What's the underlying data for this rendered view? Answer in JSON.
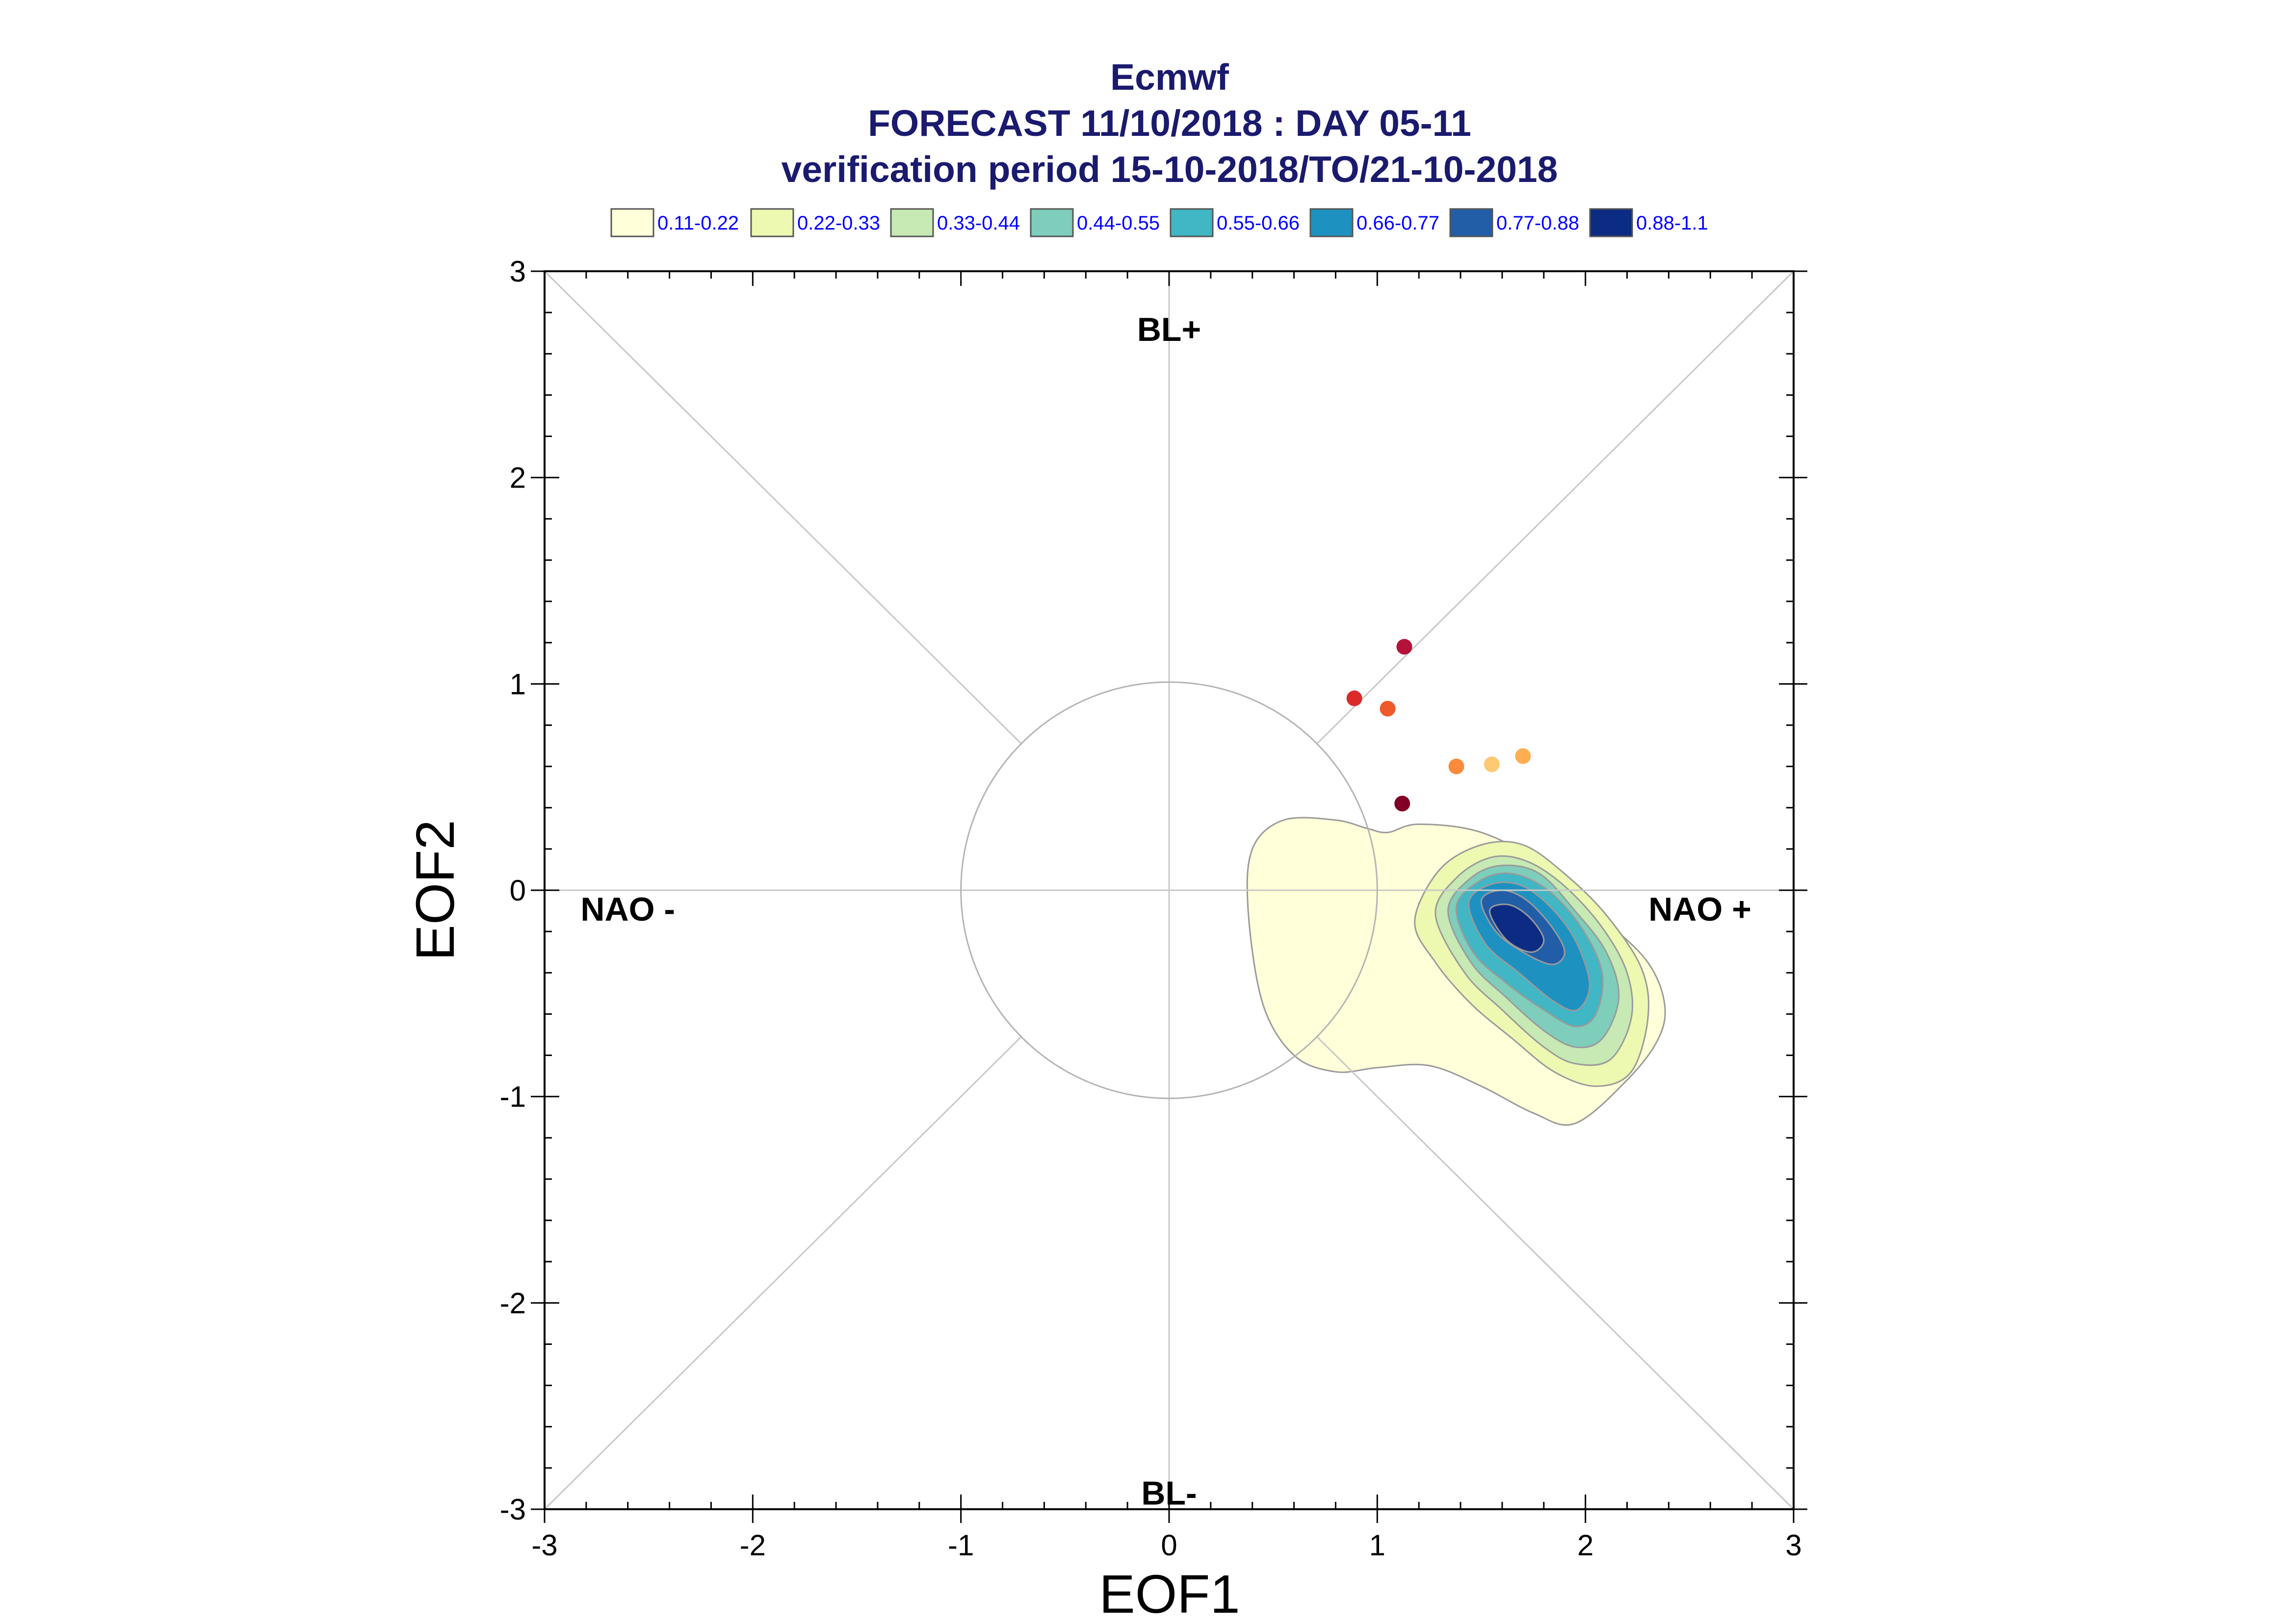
{
  "chart_data": {
    "type": "scatter",
    "title": "Ecmwf",
    "subtitle_1": "FORECAST 11/10/2018 : DAY 05-11",
    "subtitle_2": "verification period 15-10-2018/TO/21-10-2018",
    "xlabel": "EOF1",
    "ylabel": "EOF2",
    "xlim": [
      -3,
      3
    ],
    "ylim": [
      -3,
      3
    ],
    "xticks": [
      "-3",
      "-2",
      "-1",
      "0",
      "1",
      "2",
      "3"
    ],
    "yticks": [
      "-3",
      "-2",
      "-1",
      "0",
      "1",
      "2",
      "3"
    ],
    "grid": false,
    "legend_position": "top",
    "legend": [
      {
        "label": "0.11-0.22",
        "color": "#ffffd9"
      },
      {
        "label": "0.22-0.33",
        "color": "#edf8b1"
      },
      {
        "label": "0.33-0.44",
        "color": "#c7e9b4"
      },
      {
        "label": "0.44-0.55",
        "color": "#7fcdbb"
      },
      {
        "label": "0.55-0.66",
        "color": "#41b6c4"
      },
      {
        "label": "0.66-0.77",
        "color": "#1d91c0"
      },
      {
        "label": "0.77-0.88",
        "color": "#225ea8"
      },
      {
        "label": "0.88-1.1",
        "color": "#0c2c84"
      }
    ],
    "regions": [
      {
        "label": "BL+",
        "x": 0,
        "y": 2.72
      },
      {
        "label": "BL-",
        "x": 0,
        "y": -2.92
      },
      {
        "label": "NAO -",
        "x": -2.6,
        "y": -0.09
      },
      {
        "label": "NAO +",
        "x": 2.55,
        "y": -0.09
      }
    ],
    "reference_circle_radius": 1,
    "points": [
      {
        "x": 1.13,
        "y": 1.18,
        "color": "#b5123a"
      },
      {
        "x": 0.89,
        "y": 0.93,
        "color": "#dc2a2a"
      },
      {
        "x": 1.05,
        "y": 0.88,
        "color": "#f05a2a"
      },
      {
        "x": 1.38,
        "y": 0.6,
        "color": "#fb8a3c"
      },
      {
        "x": 1.55,
        "y": 0.61,
        "color": "#fdc974"
      },
      {
        "x": 1.7,
        "y": 0.65,
        "color": "#fdae52"
      },
      {
        "x": 1.12,
        "y": 0.42,
        "color": "#800026"
      }
    ],
    "density_contours": [
      {
        "level": "0.11-0.22",
        "color": "#ffffd9",
        "x": [
          0.4,
          0.55,
          0.8,
          0.95,
          1.05,
          1.2,
          1.5,
          1.8,
          2.1,
          2.3,
          2.38,
          2.35,
          2.2,
          1.95,
          1.75,
          1.5,
          1.25,
          1.0,
          0.8,
          0.6,
          0.45,
          0.38,
          0.4
        ],
        "y": [
          0.2,
          0.34,
          0.34,
          0.3,
          0.28,
          0.32,
          0.28,
          0.12,
          -0.15,
          -0.35,
          -0.55,
          -0.72,
          -0.92,
          -1.13,
          -1.08,
          -0.95,
          -0.85,
          -0.86,
          -0.88,
          -0.8,
          -0.55,
          -0.1,
          0.2
        ]
      },
      {
        "level": "0.22-0.33",
        "color": "#edf8b1",
        "x": [
          1.18,
          1.3,
          1.5,
          1.7,
          1.9,
          2.1,
          2.27,
          2.3,
          2.22,
          2.05,
          1.85,
          1.65,
          1.45,
          1.28,
          1.18
        ],
        "y": [
          -0.15,
          0.1,
          0.22,
          0.22,
          0.08,
          -0.12,
          -0.38,
          -0.62,
          -0.88,
          -0.95,
          -0.88,
          -0.72,
          -0.55,
          -0.35,
          -0.15
        ]
      },
      {
        "level": "0.33-0.44",
        "color": "#c7e9b4",
        "x": [
          1.28,
          1.38,
          1.55,
          1.72,
          1.9,
          2.08,
          2.2,
          2.22,
          2.12,
          1.95,
          1.8,
          1.6,
          1.42,
          1.28
        ],
        "y": [
          -0.12,
          0.06,
          0.16,
          0.14,
          0.02,
          -0.18,
          -0.4,
          -0.62,
          -0.82,
          -0.84,
          -0.76,
          -0.58,
          -0.4,
          -0.12
        ]
      },
      {
        "level": "0.44-0.55",
        "color": "#7fcdbb",
        "x": [
          1.34,
          1.45,
          1.6,
          1.78,
          1.95,
          2.1,
          2.16,
          2.08,
          1.95,
          1.8,
          1.62,
          1.45,
          1.34
        ],
        "y": [
          -0.1,
          0.06,
          0.12,
          0.08,
          -0.1,
          -0.3,
          -0.52,
          -0.72,
          -0.76,
          -0.68,
          -0.52,
          -0.35,
          -0.1
        ]
      },
      {
        "level": "0.55-0.66",
        "color": "#41b6c4",
        "x": [
          1.38,
          1.5,
          1.65,
          1.82,
          1.98,
          2.08,
          2.05,
          1.95,
          1.8,
          1.62,
          1.46,
          1.38
        ],
        "y": [
          -0.08,
          0.05,
          0.08,
          0.0,
          -0.18,
          -0.4,
          -0.6,
          -0.66,
          -0.58,
          -0.45,
          -0.3,
          -0.08
        ]
      },
      {
        "level": "0.66-0.77",
        "color": "#1d91c0",
        "x": [
          1.44,
          1.55,
          1.7,
          1.85,
          1.96,
          2.02,
          1.96,
          1.85,
          1.68,
          1.52,
          1.44
        ],
        "y": [
          -0.06,
          0.03,
          0.02,
          -0.1,
          -0.26,
          -0.46,
          -0.58,
          -0.54,
          -0.4,
          -0.26,
          -0.06
        ]
      },
      {
        "level": "0.77-0.88",
        "color": "#225ea8",
        "x": [
          1.5,
          1.6,
          1.72,
          1.84,
          1.9,
          1.84,
          1.7,
          1.57,
          1.5
        ],
        "y": [
          -0.05,
          0.0,
          -0.05,
          -0.18,
          -0.3,
          -0.36,
          -0.3,
          -0.2,
          -0.05
        ]
      },
      {
        "level": "0.88-1.1",
        "color": "#0c2c84",
        "x": [
          1.54,
          1.63,
          1.73,
          1.8,
          1.74,
          1.62,
          1.54
        ],
        "y": [
          -0.1,
          -0.07,
          -0.13,
          -0.24,
          -0.3,
          -0.24,
          -0.1
        ]
      }
    ]
  }
}
